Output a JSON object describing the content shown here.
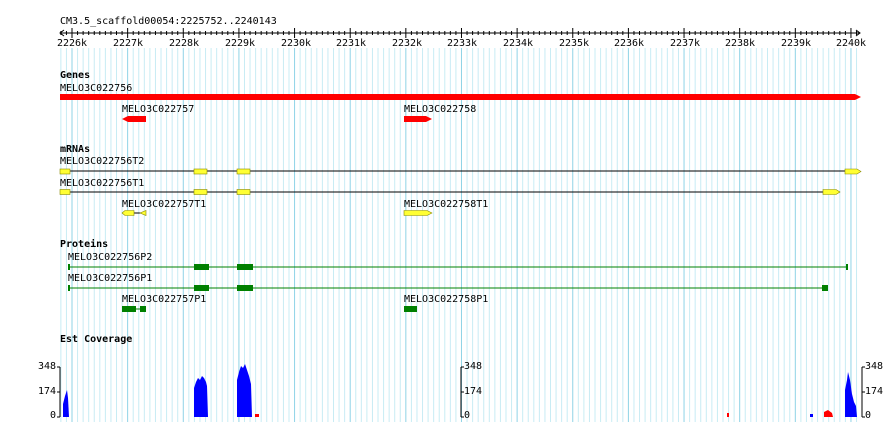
{
  "region": "CM3.5_scaffold00054:2225752..2240143",
  "ruler": {
    "ticks": [
      "2226k",
      "2227k",
      "2228k",
      "2229k",
      "2230k",
      "2231k",
      "2232k",
      "2233k",
      "2234k",
      "2235k",
      "2236k",
      "2237k",
      "2238k",
      "2239k",
      "2240k"
    ]
  },
  "tracks": {
    "genes": {
      "title": "Genes",
      "features": [
        {
          "name": "MELO3C022756",
          "color": "#ff0000"
        },
        {
          "name": "MELO3C022757",
          "color": "#ff0000"
        },
        {
          "name": "MELO3C022758",
          "color": "#ff0000"
        }
      ]
    },
    "mrnas": {
      "title": "mRNAs",
      "features": [
        {
          "name": "MELO3C022756T2",
          "color": "#ffff33"
        },
        {
          "name": "MELO3C022756T1",
          "color": "#ffff33"
        },
        {
          "name": "MELO3C022757T1",
          "color": "#ffff33"
        },
        {
          "name": "MELO3C022758T1",
          "color": "#ffff33"
        }
      ]
    },
    "proteins": {
      "title": "Proteins",
      "features": [
        {
          "name": "MELO3C022756P2",
          "color": "#008000"
        },
        {
          "name": "MELO3C022756P1",
          "color": "#008000"
        },
        {
          "name": "MELO3C022757P1",
          "color": "#008000"
        },
        {
          "name": "MELO3C022758P1",
          "color": "#008000"
        }
      ]
    },
    "coverage": {
      "title": "Est Coverage",
      "scale_labels": [
        "348",
        "174",
        "0"
      ],
      "color": "#0000ff"
    }
  }
}
